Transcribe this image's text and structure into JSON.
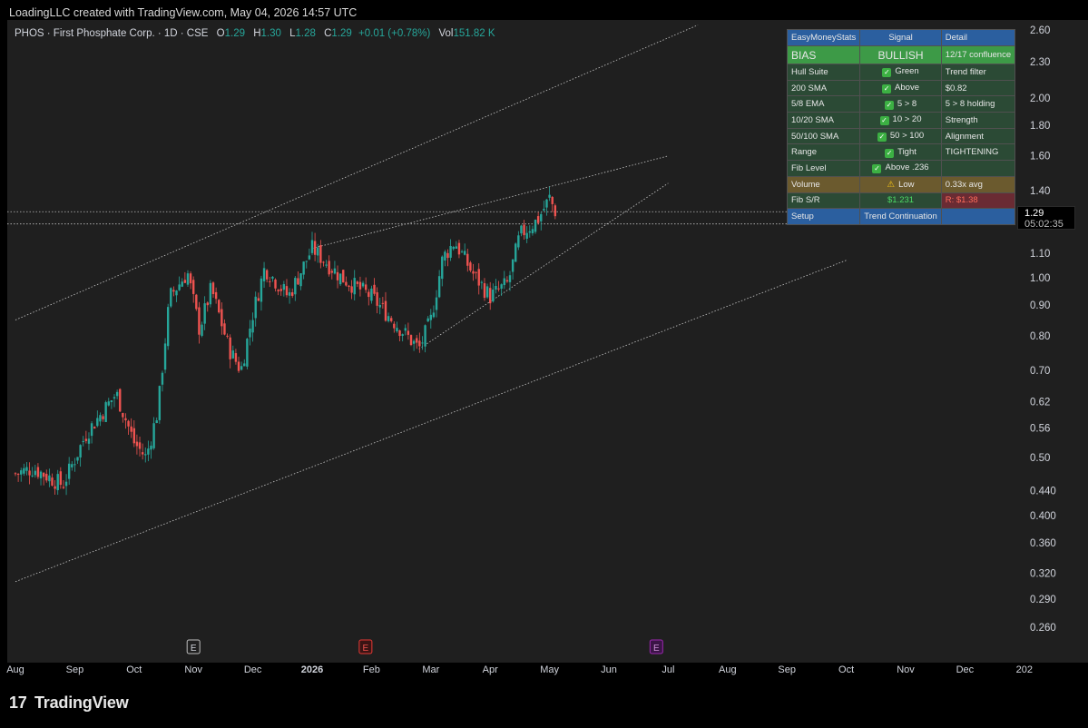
{
  "credit": "LoadingLLC created with TradingView.com, May 04, 2026 14:57 UTC",
  "legend": {
    "symbol": "PHOS · First Phosphate Corp. · 1D · CSE",
    "o_label": "O",
    "o": "1.29",
    "h_label": "H",
    "h": "1.30",
    "l_label": "L",
    "l": "1.28",
    "c_label": "C",
    "c": "1.29",
    "change": "+0.01 (+0.78%)",
    "vol_label": "Vol",
    "vol": "151.82 K"
  },
  "price_tag": {
    "price": "1.29",
    "countdown": "05:02:35"
  },
  "stats_table": {
    "header": [
      "EasyMoneyStats",
      "Signal",
      "Detail"
    ],
    "bias": [
      "BIAS",
      "BULLISH",
      "12/17 confluence"
    ],
    "rows": [
      [
        "Hull Suite",
        "Green",
        "Trend filter"
      ],
      [
        "200 SMA",
        "Above",
        "$0.82"
      ],
      [
        "5/8 EMA",
        "5 > 8",
        "5 > 8 holding"
      ],
      [
        "10/20 SMA",
        "10 > 20",
        "Strength"
      ],
      [
        "50/100 SMA",
        "50 > 100",
        "Alignment"
      ],
      [
        "Range",
        "Tight",
        "TIGHTENING"
      ],
      [
        "Fib Level",
        "Above .236",
        ""
      ]
    ],
    "volume": [
      "Volume",
      "Low",
      "0.33x avg"
    ],
    "fib": [
      "Fib S/R",
      "$1.231",
      "R: $1.38"
    ],
    "setup": [
      "Setup",
      "Trend Continuation",
      ""
    ]
  },
  "brand": "TradingView",
  "colors": {
    "up": "#26a69a",
    "down": "#ef5350",
    "background": "#1f1f1f",
    "earnings_future": "#9c27b0",
    "earnings_past_red": "#e53935"
  },
  "chart_data": {
    "type": "candlestick",
    "symbol": "PHOS",
    "scale": "log",
    "y_ticks": [
      2.6,
      2.3,
      2.0,
      1.8,
      1.6,
      1.4,
      1.1,
      1.0,
      0.9,
      0.8,
      0.7,
      0.62,
      0.56,
      0.5,
      0.44,
      0.4,
      0.36,
      0.32,
      0.29,
      0.26
    ],
    "y_tick_labels": [
      "2.60",
      "2.30",
      "2.00",
      "1.80",
      "1.60",
      "1.40",
      "1.10",
      "1.00",
      "0.90",
      "0.80",
      "0.70",
      "0.62",
      "0.56",
      "0.50",
      "0.440",
      "0.400",
      "0.360",
      "0.320",
      "0.290",
      "0.260"
    ],
    "x_labels": [
      {
        "label": "Aug",
        "month": 0
      },
      {
        "label": "Sep",
        "month": 1
      },
      {
        "label": "Oct",
        "month": 2
      },
      {
        "label": "Nov",
        "month": 3
      },
      {
        "label": "Dec",
        "month": 4
      },
      {
        "label": "2026",
        "month": 5
      },
      {
        "label": "Feb",
        "month": 6
      },
      {
        "label": "Mar",
        "month": 7
      },
      {
        "label": "Apr",
        "month": 8
      },
      {
        "label": "May",
        "month": 9
      },
      {
        "label": "Jun",
        "month": 10
      },
      {
        "label": "Jul",
        "month": 11
      },
      {
        "label": "Aug",
        "month": 12
      },
      {
        "label": "Sep",
        "month": 13
      },
      {
        "label": "Oct",
        "month": 14
      },
      {
        "label": "Nov",
        "month": 15
      },
      {
        "label": "Dec",
        "month": 16
      },
      {
        "label": "202",
        "month": 17
      }
    ],
    "price_key_points": [
      {
        "m": 0.0,
        "p": 0.47
      },
      {
        "m": 0.3,
        "p": 0.48
      },
      {
        "m": 0.8,
        "p": 0.45
      },
      {
        "m": 1.2,
        "p": 0.55
      },
      {
        "m": 1.7,
        "p": 0.64
      },
      {
        "m": 2.0,
        "p": 0.53
      },
      {
        "m": 2.2,
        "p": 0.5
      },
      {
        "m": 2.4,
        "p": 0.6
      },
      {
        "m": 2.6,
        "p": 0.93
      },
      {
        "m": 2.9,
        "p": 1.02
      },
      {
        "m": 3.1,
        "p": 0.82
      },
      {
        "m": 3.3,
        "p": 0.96
      },
      {
        "m": 3.6,
        "p": 0.76
      },
      {
        "m": 3.8,
        "p": 0.7
      },
      {
        "m": 4.0,
        "p": 0.87
      },
      {
        "m": 4.2,
        "p": 1.04
      },
      {
        "m": 4.6,
        "p": 0.93
      },
      {
        "m": 5.0,
        "p": 1.12
      },
      {
        "m": 5.5,
        "p": 1.0
      },
      {
        "m": 6.0,
        "p": 0.93
      },
      {
        "m": 6.4,
        "p": 0.84
      },
      {
        "m": 6.8,
        "p": 0.76
      },
      {
        "m": 7.0,
        "p": 0.85
      },
      {
        "m": 7.2,
        "p": 1.08
      },
      {
        "m": 7.4,
        "p": 1.15
      },
      {
        "m": 7.7,
        "p": 1.02
      },
      {
        "m": 8.0,
        "p": 0.93
      },
      {
        "m": 8.3,
        "p": 0.98
      },
      {
        "m": 8.5,
        "p": 1.18
      },
      {
        "m": 8.8,
        "p": 1.25
      },
      {
        "m": 9.0,
        "p": 1.36
      },
      {
        "m": 9.1,
        "p": 1.29
      }
    ],
    "horizontal_lines": [
      1.29,
      1.231
    ],
    "trend_lines": [
      {
        "m1": 0.0,
        "p1": 0.85,
        "m2": 11.5,
        "p2": 2.65
      },
      {
        "m1": 5.0,
        "p1": 1.12,
        "m2": 11.0,
        "p2": 1.6
      },
      {
        "m1": 6.8,
        "p1": 0.76,
        "m2": 11.0,
        "p2": 1.44
      },
      {
        "m1": 0.0,
        "p1": 0.31,
        "m2": 14.0,
        "p2": 1.07
      }
    ],
    "earnings_markers": [
      {
        "label": "E",
        "month": 3.0,
        "style": "past"
      },
      {
        "label": "E",
        "month": 5.9,
        "style": "past-red"
      },
      {
        "label": "E",
        "month": 10.8,
        "style": "future"
      }
    ]
  }
}
